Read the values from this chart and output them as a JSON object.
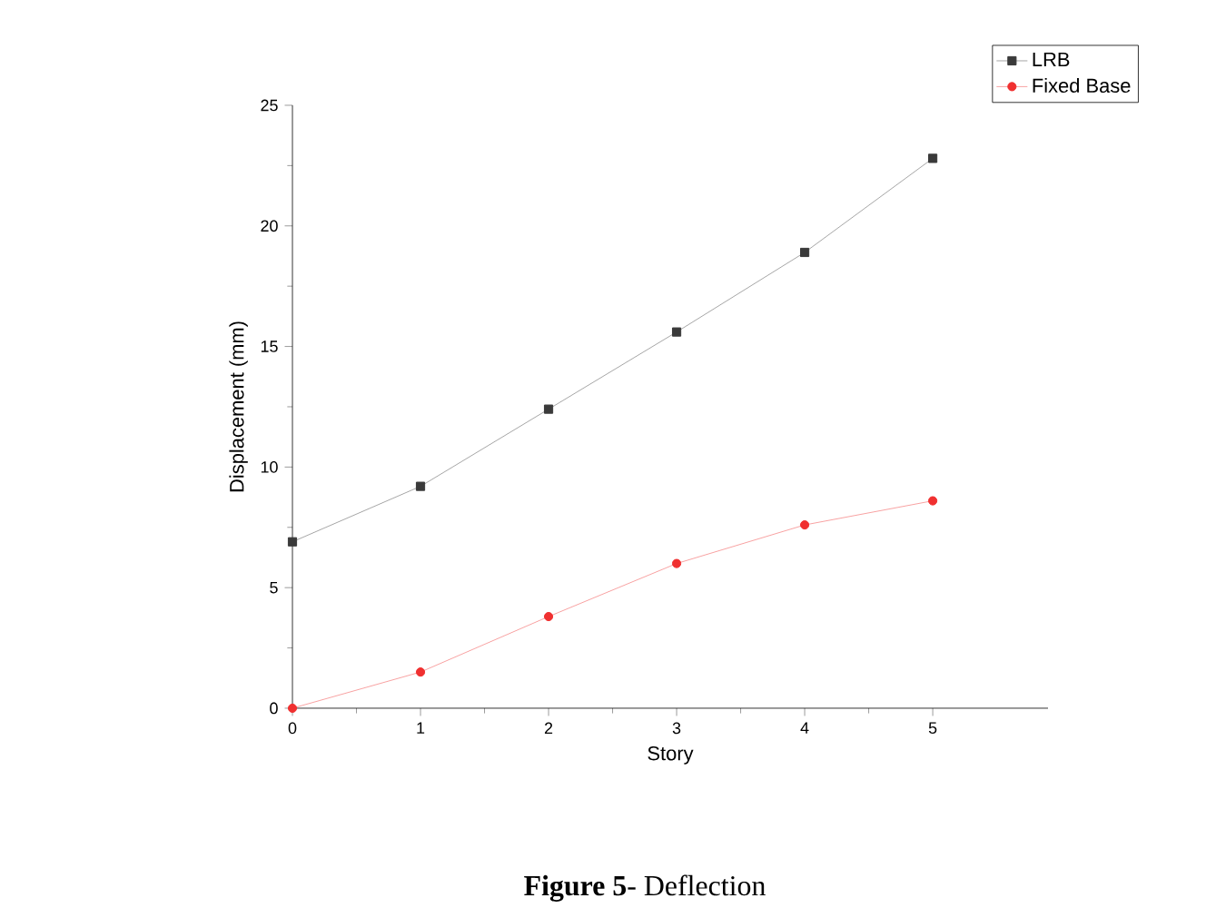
{
  "chart_data": {
    "type": "line",
    "xlabel": "Story",
    "ylabel": "Displacement (mm)",
    "x": [
      0,
      1,
      2,
      3,
      4,
      5
    ],
    "series": [
      {
        "name": "LRB",
        "color": "#3a3a3a",
        "marker": "square",
        "values": [
          6.9,
          9.2,
          12.4,
          15.6,
          18.9,
          22.8
        ]
      },
      {
        "name": "Fixed Base",
        "color": "#f03030",
        "marker": "circle",
        "values": [
          0,
          1.5,
          3.8,
          6.0,
          7.6,
          8.6
        ]
      }
    ],
    "xlim": [
      0,
      5.9
    ],
    "ylim": [
      0,
      25
    ],
    "xticks": [
      0,
      1,
      2,
      3,
      4,
      5
    ],
    "yticks": [
      0,
      5,
      10,
      15,
      20,
      25
    ],
    "legend": "top right",
    "grid": false,
    "annotations": [
      "**Figure 5**- Deflection"
    ]
  }
}
